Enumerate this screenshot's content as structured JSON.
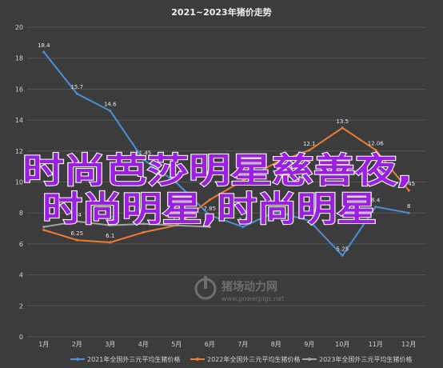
{
  "chart_data": {
    "type": "line",
    "title": "2021~2023年猪价走势",
    "xlabel": "",
    "ylabel": "",
    "categories": [
      "1月",
      "2月",
      "3月",
      "4月",
      "5月",
      "6月",
      "7月",
      "8月",
      "9月",
      "10月",
      "11月",
      "12月"
    ],
    "ylim": [
      0,
      20
    ],
    "yticks": [
      0,
      2,
      4,
      6,
      8,
      10,
      12,
      14,
      16,
      18,
      20
    ],
    "grid": true,
    "legend_position": "bottom",
    "series": [
      {
        "name": "2021年全国外三元平均生猪价格",
        "color": "#4a90d9",
        "values": [
          18.4,
          15.7,
          14.6,
          11.45,
          9.95,
          7.85,
          7.1,
          8.1,
          7.5,
          5.25,
          8.4,
          8.0
        ]
      },
      {
        "name": "2022年全国外三元平均生猪价格",
        "color": "#ed7d31",
        "values": [
          6.9,
          6.25,
          6.1,
          6.75,
          7.2,
          8.85,
          10.1,
          11.25,
          12.05,
          13.5,
          12.06,
          9.45
        ]
      },
      {
        "name": "2023年全国外三元平均生猪价格",
        "color": "#a5a5a5",
        "values": [
          7.1,
          7.45,
          7.2,
          7.3,
          7.2,
          7.1,
          null,
          null,
          null,
          null,
          null,
          null
        ]
      }
    ],
    "data_labels": [
      {
        "series": 0,
        "index": 0,
        "text": "18.4"
      },
      {
        "series": 0,
        "index": 1,
        "text": "15.7"
      },
      {
        "series": 0,
        "index": 2,
        "text": "14.6"
      },
      {
        "series": 0,
        "index": 3,
        "text": "11.45"
      },
      {
        "series": 0,
        "index": 4,
        "text": "9.95"
      },
      {
        "series": 0,
        "index": 5,
        "text": "7.85"
      },
      {
        "series": 0,
        "index": 6,
        "text": "7.1"
      },
      {
        "series": 0,
        "index": 8,
        "text": "7.5"
      },
      {
        "series": 0,
        "index": 9,
        "text": "5.25"
      },
      {
        "series": 0,
        "index": 10,
        "text": "8.4"
      },
      {
        "series": 0,
        "index": 11,
        "text": "8"
      },
      {
        "series": 1,
        "index": 1,
        "text": "6.25"
      },
      {
        "series": 1,
        "index": 2,
        "text": "6.1"
      },
      {
        "series": 1,
        "index": 4,
        "text": "7.2"
      },
      {
        "series": 1,
        "index": 8,
        "text": "12.1"
      },
      {
        "series": 1,
        "index": 9,
        "text": "13.5"
      },
      {
        "series": 1,
        "index": 10,
        "text": "12.06"
      },
      {
        "series": 1,
        "index": 11,
        "text": "9.45"
      },
      {
        "series": 2,
        "index": 1,
        "text": "7.4"
      },
      {
        "series": 2,
        "index": 2,
        "text": "7.2"
      }
    ]
  },
  "overlay": {
    "line1": "时尚芭莎明星慈善夜,",
    "line2": "时尚明星,时尚明星",
    "color": "#9b1fe0"
  },
  "watermark": {
    "brand": "猪场动力网",
    "url": "www.powerpigs.net"
  }
}
